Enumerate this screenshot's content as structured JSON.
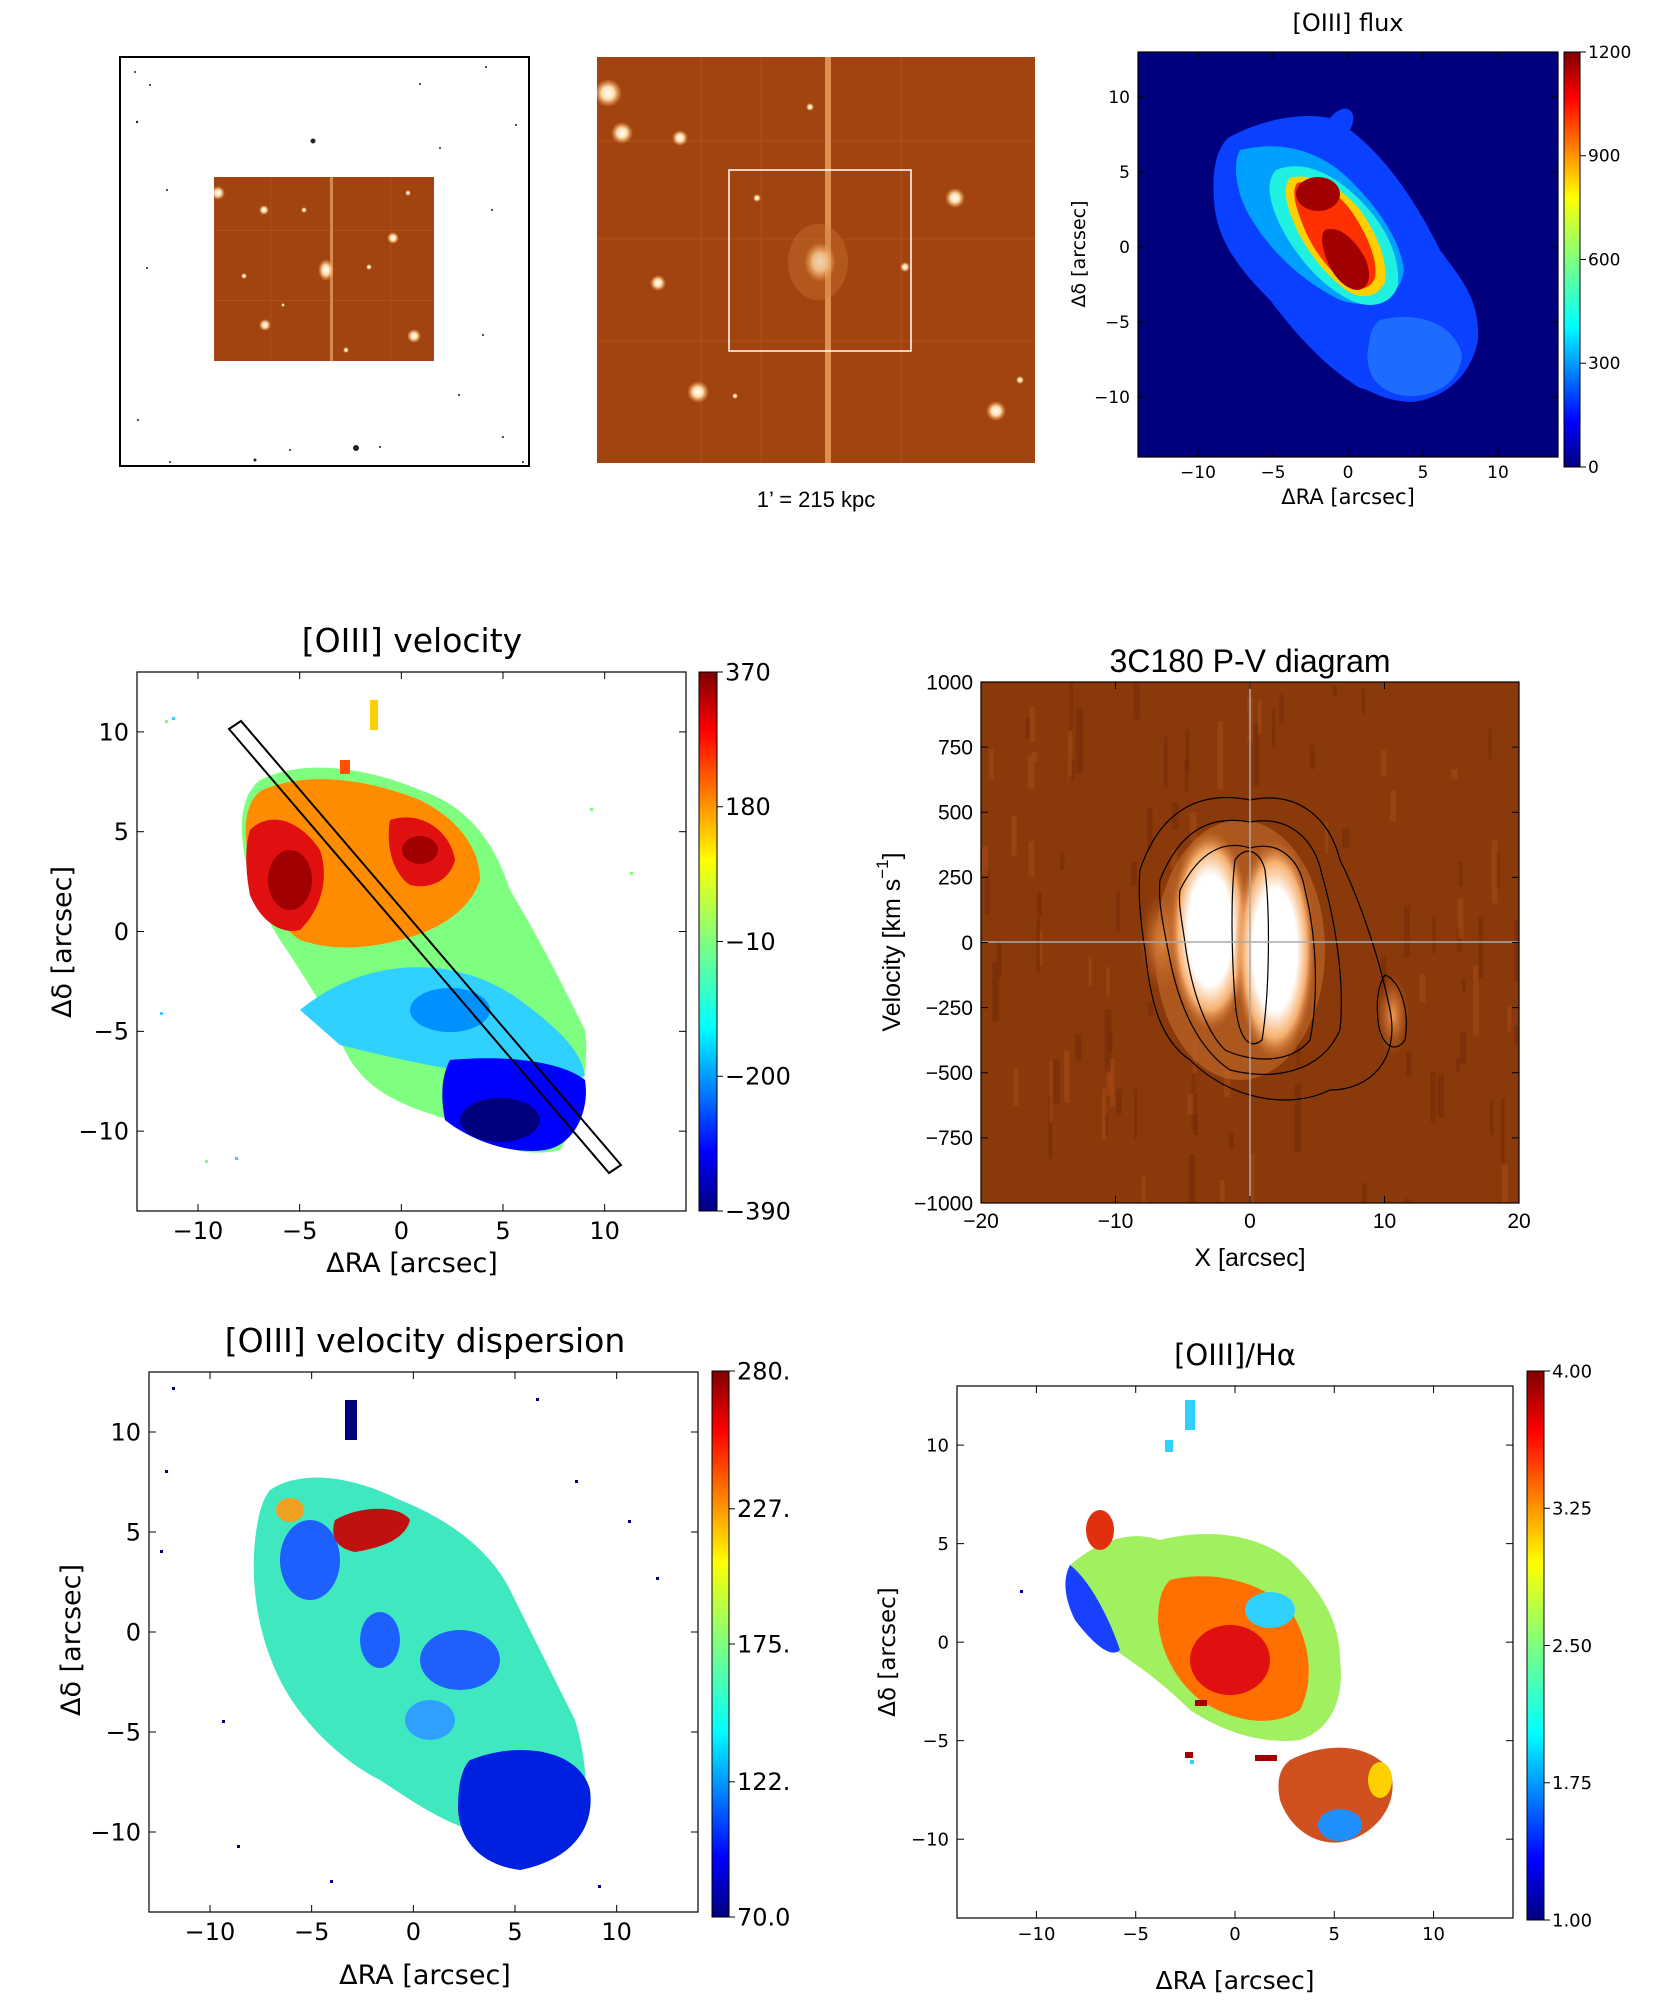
{
  "top_row": {
    "scale_caption": "1’ = 215 kpc"
  },
  "colors": {
    "jet": [
      "#00007f",
      "#0000ff",
      "#007fff",
      "#00ffff",
      "#7fff7f",
      "#ffff00",
      "#ff7f00",
      "#ff0000",
      "#7f0000"
    ],
    "pv_background": "#8a3a0a",
    "image_background": "#a2440f"
  },
  "chart_data": [
    {
      "id": "flux",
      "type": "heatmap",
      "title": "[OIII] flux",
      "xlabel": "ΔRA [arcsec]",
      "ylabel": "Δδ [arcsec]",
      "xlim": [
        -14,
        14
      ],
      "ylim": [
        -14,
        13
      ],
      "xticks": [
        "−10",
        "−5",
        "0",
        "5",
        "10"
      ],
      "yticks": [
        "10",
        "5",
        "0",
        "−5",
        "−10"
      ],
      "colorbar_ticks": [
        "1200",
        "900",
        "600",
        "300",
        "0"
      ],
      "colorbar_range": [
        0,
        1200
      ]
    },
    {
      "id": "velocity",
      "type": "heatmap",
      "title": "[OIII] velocity",
      "xlabel": "ΔRA [arcsec]",
      "ylabel": "Δδ [arcsec]",
      "xlim": [
        -13,
        14
      ],
      "ylim": [
        -14,
        13
      ],
      "xticks": [
        "−10",
        "−5",
        "0",
        "5",
        "10"
      ],
      "yticks": [
        "10",
        "5",
        "0",
        "−5",
        "−10"
      ],
      "colorbar_ticks": [
        "370",
        "180",
        "−10",
        "−200",
        "−390"
      ],
      "colorbar_range": [
        -390,
        370
      ],
      "slit": {
        "from": [
          -8.5,
          10.3
        ],
        "to": [
          10,
          -12
        ],
        "width_arcsec": 1.0
      }
    },
    {
      "id": "pv",
      "type": "heatmap",
      "title": "3C180 P-V diagram",
      "xlabel": "X [arcsec]",
      "ylabel": "Velocity [km s⁻¹]",
      "ylabel_main": "Velocity [km s",
      "ylabel_exp": "−1",
      "ylabel_close": "]",
      "xlim": [
        -20,
        20
      ],
      "ylim": [
        -1000,
        1000
      ],
      "xticks": [
        "−20",
        "−10",
        "0",
        "10",
        "20"
      ],
      "yticks": [
        "1000",
        "750",
        "500",
        "250",
        "0",
        "−250",
        "−500",
        "−750",
        "−1000"
      ]
    },
    {
      "id": "dispersion",
      "type": "heatmap",
      "title": "[OIII] velocity dispersion",
      "xlabel": "ΔRA [arcsec]",
      "ylabel": "Δδ [arcsec]",
      "xlim": [
        -13,
        14
      ],
      "ylim": [
        -14,
        13
      ],
      "xticks": [
        "−10",
        "−5",
        "0",
        "5",
        "10"
      ],
      "yticks": [
        "10",
        "5",
        "0",
        "−5",
        "−10"
      ],
      "colorbar_ticks": [
        "280.",
        "227.",
        "175.",
        "122.",
        "70.0"
      ],
      "colorbar_range": [
        70,
        280
      ]
    },
    {
      "id": "ratio",
      "type": "heatmap",
      "title": "[OIII]/Hα",
      "xlabel": "ΔRA [arcsec]",
      "ylabel": "Δδ [arcsec]",
      "xlim": [
        -14,
        14
      ],
      "ylim": [
        -14,
        13
      ],
      "xticks": [
        "−10",
        "−5",
        "0",
        "5",
        "10"
      ],
      "yticks": [
        "10",
        "5",
        "0",
        "−5",
        "−10"
      ],
      "colorbar_ticks": [
        "4.00",
        "3.25",
        "2.50",
        "1.75",
        "1.00"
      ],
      "colorbar_range": [
        1.0,
        4.0
      ]
    }
  ]
}
